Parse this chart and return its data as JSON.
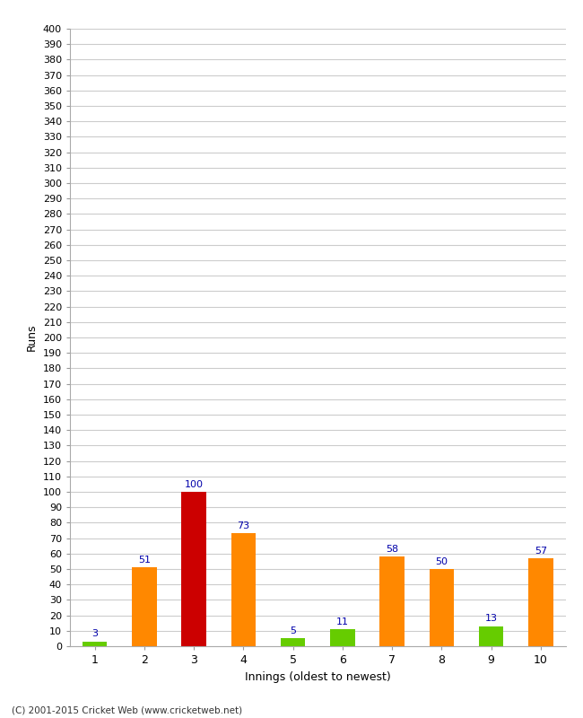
{
  "categories": [
    "1",
    "2",
    "3",
    "4",
    "5",
    "6",
    "7",
    "8",
    "9",
    "10"
  ],
  "values": [
    3,
    51,
    100,
    73,
    5,
    11,
    58,
    50,
    13,
    57
  ],
  "bar_colors": [
    "#66cc00",
    "#ff8800",
    "#cc0000",
    "#ff8800",
    "#66cc00",
    "#66cc00",
    "#ff8800",
    "#ff8800",
    "#66cc00",
    "#ff8800"
  ],
  "xlabel": "Innings (oldest to newest)",
  "ylabel": "Runs",
  "ylim": [
    0,
    400
  ],
  "ytick_step": 10,
  "background_color": "#ffffff",
  "grid_color": "#cccccc",
  "label_color": "#0000aa",
  "footer": "(C) 2001-2015 Cricket Web (www.cricketweb.net)",
  "bar_width": 0.5
}
